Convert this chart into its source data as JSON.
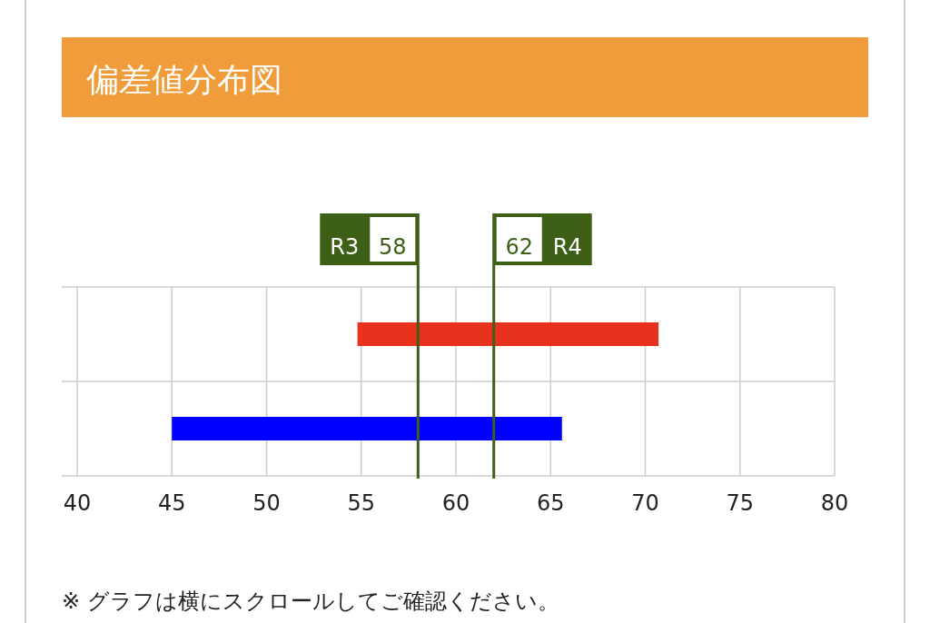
{
  "chart_data": {
    "type": "bar",
    "orientation": "horizontal",
    "title": "偏差値分布図",
    "categories": [
      null,
      null
    ],
    "values": [
      15.9,
      20.6
    ],
    "base": [
      54.8,
      45
    ],
    "colors": [
      "#e8321e",
      "#0000ff"
    ],
    "xlim": [
      40,
      80
    ],
    "xticks": [
      40,
      45,
      50,
      55,
      60,
      65,
      70,
      75,
      80
    ],
    "grid": true,
    "ref_lines": [
      {
        "axis": "x",
        "value": 58,
        "label": "R3 58",
        "color": "#3d5f16"
      },
      {
        "axis": "x",
        "value": 62,
        "label": "62 R4",
        "color": "#3d5f16"
      }
    ],
    "annotations": [
      "※ グラフは横にスクロールしてご確認ください。"
    ]
  }
}
